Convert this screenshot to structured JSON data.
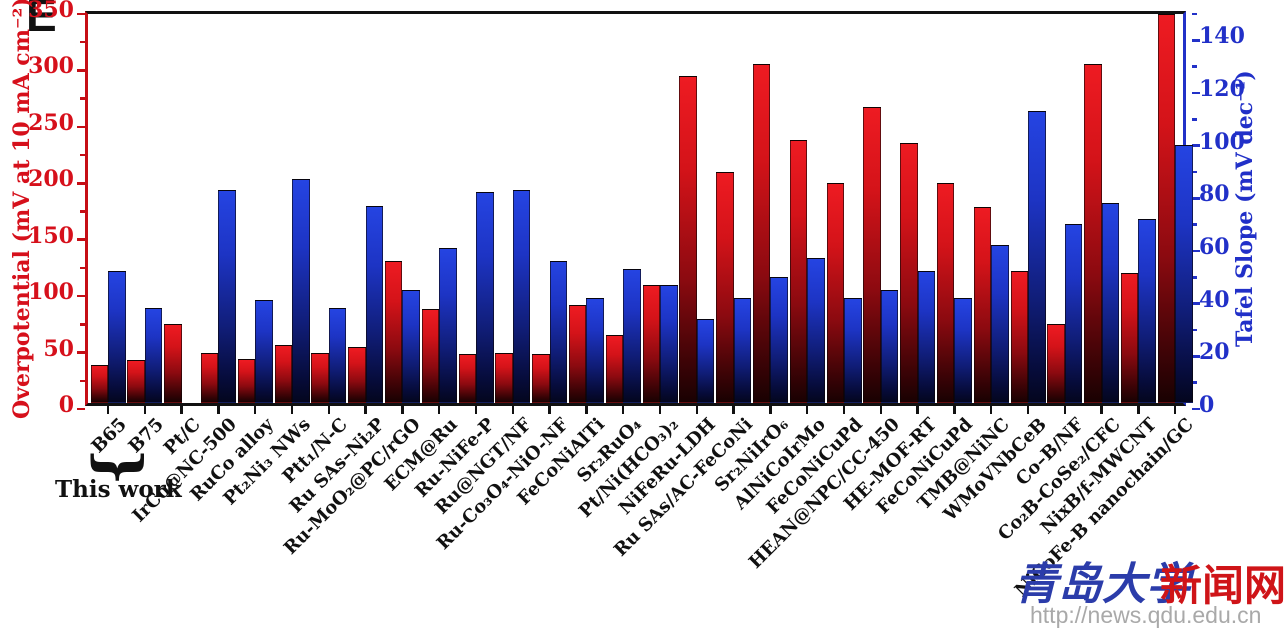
{
  "panel_label": "E",
  "annotation": {
    "brace": "{",
    "label": "This work"
  },
  "watermark": {
    "cn_blue": "青岛大学",
    "cn_red": "新闻网",
    "url": "http://news.qdu.edu.cn"
  },
  "axes": {
    "left": {
      "title": "Overpotential (mV at 10 mA cm⁻²)",
      "color": "#d6101b",
      "max": 350,
      "major_ticks": [
        0,
        50,
        100,
        150,
        200,
        250,
        300,
        350
      ],
      "minor_ticks": [
        25,
        75,
        125,
        175,
        225,
        275,
        325
      ]
    },
    "right": {
      "title": "Tafel Slope (mV dec⁻¹)",
      "color": "#2130c8",
      "max": 150,
      "major_ticks": [
        0,
        20,
        40,
        60,
        80,
        100,
        120,
        140
      ],
      "minor_ticks": [
        10,
        30,
        50,
        70,
        90,
        110,
        130,
        150
      ]
    }
  },
  "chart_data": {
    "type": "bar",
    "title": "",
    "xlabel": "",
    "grid": false,
    "legend_position": "none",
    "left_axis_label": "Overpotential (mV at 10 mA cm⁻²)",
    "right_axis_label": "Tafel Slope (mV dec⁻¹)",
    "left_axis_range": [
      0,
      350
    ],
    "right_axis_range": [
      0,
      150
    ],
    "categories": [
      "B65",
      "B75",
      "Pt/C",
      "IrCo@NC-500",
      "RuCo alloy",
      "Pt₂Ni₃ NWs",
      "Ptt₁/N-C",
      "Ru SAs–Ni₂P",
      "Ru-MoO₂@PC/rGO",
      "ECM@Ru",
      "Ru-NiFe-P",
      "Ru@NGT/NF",
      "Ru-Co₃O₄-NiO-NF",
      "FeCoNiAlTi",
      "Sr₂RuO₄",
      "Pt/Ni(HCO₃)₂",
      "NiFeRu-LDH",
      "Ru SAs/AC-FeCoNi",
      "Sr₂NiIrO₆",
      "AlNiCoIrMo",
      "FeCoNiCuPd",
      "HEAN@NPC/CC-450",
      "HE-MOF-RT",
      "FeCoNiCuPd",
      "TMB@NiNC",
      "WMoVNbCeB",
      "Co–B/NF",
      "Co₂B-CoSe₂/CFC",
      "NixB/f-MWCNT",
      "NiCoFe-B nanochain/GC"
    ],
    "series": [
      {
        "name": "Overpotential (mV at 10 mA cm⁻²)",
        "axis": "left",
        "color": "#e8161d",
        "values": [
          34,
          38,
          70,
          44,
          39,
          51,
          44,
          50,
          126,
          83,
          43,
          44,
          43,
          87,
          60,
          105,
          290,
          205,
          300,
          233,
          195,
          262,
          230,
          195,
          174,
          117,
          70,
          300,
          115,
          345
        ]
      },
      {
        "name": "Tafel Slope (mV dec⁻¹)",
        "axis": "right",
        "color": "#1e36d2",
        "values": [
          50,
          36,
          null,
          81,
          39,
          85,
          36,
          75,
          43,
          59,
          80,
          81,
          54,
          40,
          51,
          45,
          32,
          40,
          48,
          55,
          40,
          43,
          50,
          40,
          60,
          111,
          68,
          76,
          70,
          98
        ]
      }
    ]
  }
}
